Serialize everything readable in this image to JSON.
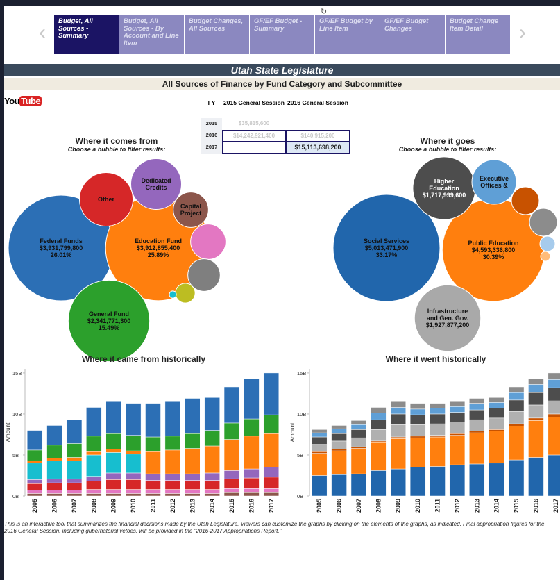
{
  "tabs": [
    "Budget, All Sources - Summary",
    "Budget, All Sources - By Account and Line Item",
    "Budget Changes, All Sources",
    "GF/EF Budget - Summary",
    "GF/EF Budget by Line Item",
    "GF/EF Budget Changes",
    "Budget Change Item Detail"
  ],
  "header": {
    "title": "Utah State Legislature",
    "subtitle": "All Sources of Finance by Fund Category and Subcommittee"
  },
  "logo": {
    "you": "You",
    "tube": "Tube"
  },
  "table": {
    "header": [
      "FY",
      "2015 General Session",
      "2016 General Session"
    ],
    "rows": [
      [
        "2015",
        "$35,815,600",
        null
      ],
      [
        "2016",
        "$14,242,921,400",
        "$140,915,200"
      ],
      [
        "2017",
        null,
        "$15,113,698,200"
      ]
    ]
  },
  "chart_data": [
    {
      "type": "bubble",
      "title": "Where it comes from",
      "subtitle": "Choose a bubble to filter results:",
      "categories": [
        "Federal Funds",
        "Education Fund",
        "General Fund",
        "Other",
        "Dedicated Credits",
        "Capital Project",
        null,
        null,
        null,
        null
      ],
      "values": [
        3931799800,
        3912855400,
        2341771300,
        1010000000,
        906000000,
        437000000,
        437000000,
        370000000,
        137000000,
        17500000
      ],
      "value_labels": [
        "$3,931,799,800",
        "$3,912,855,400",
        "$2,341,771,300",
        null,
        null,
        null,
        null,
        null,
        null,
        null
      ],
      "share_labels": [
        "26.01%",
        "25.89%",
        "15.49%",
        null,
        null,
        null,
        null,
        null,
        null,
        null
      ],
      "colors": [
        "#2c6fb5",
        "#ff7f0e",
        "#2ca02c",
        "#d62728",
        "#9467bd",
        "#8c564b",
        "#e377c2",
        "#7f7f7f",
        "#bcbd22",
        "#17becf"
      ]
    },
    {
      "type": "bubble",
      "title": "Where it goes",
      "subtitle": "Choose a bubble to filter results:",
      "categories": [
        "Social Services",
        "Public Education",
        "Higher Education",
        "Executive Offices &",
        "Infrastructure and Gen. Gov.",
        null,
        null,
        null,
        null
      ],
      "values": [
        5013471900,
        4593336800,
        1717999600,
        865000000,
        1927877200,
        338000000,
        338000000,
        102000000,
        41000000
      ],
      "value_labels": [
        "$5,013,471,900",
        "$4,593,336,800",
        "$1,717,999,600",
        null,
        "$1,927,877,200",
        null,
        null,
        null,
        null
      ],
      "share_labels": [
        "33.17%",
        "30.39%",
        null,
        null,
        null,
        null,
        null,
        null,
        null
      ],
      "colors": [
        "#2166ac",
        "#ff7f0e",
        "#4d4d4d",
        "#5f9fd6",
        "#a9a9a9",
        "#c85200",
        "#8c8c8c",
        "#a6cbec",
        "#ffbc79"
      ]
    },
    {
      "type": "stacked_bar",
      "title": "Where it came from historically",
      "ylabel": "Amount",
      "categories": [
        "2005",
        "2006",
        "2007",
        "2008",
        "2009",
        "2010",
        "2011",
        "2012",
        "2013",
        "2014",
        "2015",
        "2016",
        "2017"
      ],
      "ylim": [
        0,
        15.5
      ],
      "yticks": [
        {
          "value": 0,
          "label": "0B"
        },
        {
          "value": 5,
          "label": "5B"
        },
        {
          "value": 10,
          "label": "10B"
        },
        {
          "value": 15,
          "label": "15B"
        }
      ],
      "series": [
        {
          "color": "#8c564b",
          "values": [
            0.3,
            0.3,
            0.3,
            0.3,
            0.3,
            0.3,
            0.3,
            0.3,
            0.3,
            0.3,
            0.4,
            0.4,
            0.4
          ]
        },
        {
          "color": "#e377c2",
          "values": [
            0.4,
            0.4,
            0.4,
            0.5,
            0.5,
            0.5,
            0.5,
            0.5,
            0.5,
            0.5,
            0.5,
            0.5,
            0.5
          ]
        },
        {
          "color": "#d62728",
          "values": [
            0.8,
            0.9,
            0.9,
            1.0,
            1.2,
            1.2,
            1.1,
            1.1,
            1.1,
            1.1,
            1.2,
            1.3,
            1.4
          ]
        },
        {
          "color": "#9467bd",
          "values": [
            0.5,
            0.5,
            0.5,
            0.6,
            0.8,
            0.8,
            0.8,
            0.8,
            0.8,
            0.9,
            1.0,
            1.1,
            1.2
          ]
        },
        {
          "color": "#17becf",
          "values": [
            2.0,
            2.2,
            2.2,
            2.6,
            2.5,
            2.3,
            0,
            0,
            0,
            0,
            0,
            0,
            0
          ]
        },
        {
          "color": "#ff7f0e",
          "values": [
            0.3,
            0.3,
            0.4,
            0.4,
            0.4,
            0.4,
            2.7,
            2.9,
            3.1,
            3.3,
            3.8,
            4.0,
            4.1
          ]
        },
        {
          "color": "#2ca02c",
          "values": [
            1.3,
            1.6,
            1.7,
            1.9,
            1.9,
            1.9,
            1.8,
            1.7,
            1.8,
            1.9,
            2.0,
            2.1,
            2.3
          ]
        },
        {
          "color": "#2c6fb5",
          "values": [
            2.4,
            2.4,
            2.9,
            3.5,
            3.9,
            3.9,
            4.1,
            4.2,
            4.3,
            4.0,
            4.4,
            4.9,
            5.1
          ]
        }
      ]
    },
    {
      "type": "stacked_bar",
      "title": "Where it went historically",
      "ylabel": "Amount",
      "categories": [
        "2005",
        "2006",
        "2007",
        "2008",
        "2009",
        "2010",
        "2011",
        "2012",
        "2013",
        "2014",
        "2015",
        "2016",
        "2017"
      ],
      "ylim": [
        0,
        15.5
      ],
      "yticks": [
        {
          "value": 0,
          "label": "0B"
        },
        {
          "value": 5,
          "label": "5B"
        },
        {
          "value": 10,
          "label": "10B"
        },
        {
          "value": 15,
          "label": "15B"
        }
      ],
      "series": [
        {
          "color": "#2166ac",
          "values": [
            2.5,
            2.6,
            2.7,
            3.1,
            3.3,
            3.5,
            3.6,
            3.8,
            3.9,
            4.0,
            4.4,
            4.7,
            5.0
          ]
        },
        {
          "color": "#ff7f0e",
          "values": [
            2.7,
            2.9,
            3.1,
            3.4,
            3.7,
            3.6,
            3.6,
            3.6,
            3.8,
            3.9,
            4.1,
            4.5,
            4.6
          ]
        },
        {
          "color": "#c85200",
          "values": [
            0.2,
            0.2,
            0.2,
            0.2,
            0.2,
            0.2,
            0.2,
            0.2,
            0.2,
            0.2,
            0.3,
            0.3,
            0.4
          ]
        },
        {
          "color": "#b0b0b0",
          "values": [
            0.9,
            1.0,
            1.1,
            1.4,
            1.5,
            1.4,
            1.4,
            1.4,
            1.4,
            1.4,
            1.5,
            1.6,
            1.6
          ]
        },
        {
          "color": "#4d4d4d",
          "values": [
            0.9,
            0.9,
            1.0,
            1.2,
            1.3,
            1.2,
            1.2,
            1.2,
            1.2,
            1.2,
            1.4,
            1.5,
            1.6
          ]
        },
        {
          "color": "#5f9fd6",
          "values": [
            0.5,
            0.6,
            0.6,
            0.8,
            0.8,
            0.7,
            0.7,
            0.7,
            0.8,
            0.7,
            0.9,
            1.0,
            1.0
          ]
        },
        {
          "color": "#8c8c8c",
          "values": [
            0.4,
            0.4,
            0.5,
            0.7,
            0.7,
            0.7,
            0.6,
            0.6,
            0.6,
            0.6,
            0.7,
            0.7,
            0.8
          ]
        }
      ]
    }
  ],
  "footer": "This is an interactive tool that summarizes the financial decisions made by the Utah Legislature.  Viewers can customize the graphs by clicking on the elements of the graphs, as indicated.  Final appropriation figures for the 2016 General Session, including gubernatorial vetoes, will be provided in the \"2016-2017 Appropriations Report.\""
}
